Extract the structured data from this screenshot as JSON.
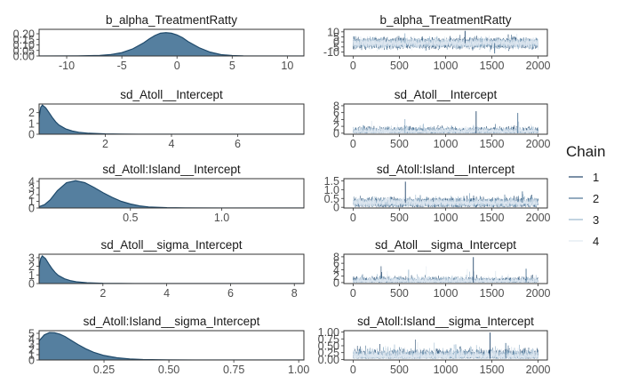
{
  "legend": {
    "title": "Chain",
    "placement": "right",
    "items": [
      {
        "label": "1",
        "color": "#23466b"
      },
      {
        "label": "2",
        "color": "#4c7394"
      },
      {
        "label": "3",
        "color": "#9ab7cd"
      },
      {
        "label": "4",
        "color": "#dfe8f0"
      }
    ]
  },
  "colors": {
    "density_fill": "#557f9f",
    "density_line": "#1f4a6b",
    "panel_border": "#333333",
    "tick_text": "#4d4d4d"
  },
  "chart_data": [
    {
      "type": "area",
      "kind": "density",
      "title": "b_alpha_TreatmentRatty",
      "xlim": [
        -12.5,
        11.5
      ],
      "ylim": [
        0,
        0.24
      ],
      "xticks": [
        -10,
        -5,
        0,
        5,
        10
      ],
      "xtick_labels": [
        "-10",
        "-5",
        "0",
        "5",
        "10"
      ],
      "yticks": [
        0,
        0.05,
        0.1,
        0.15,
        0.2
      ],
      "ytick_labels": [
        "0.00",
        "0.05",
        "0.10",
        "0.15",
        "0.20"
      ],
      "x": [
        -12.5,
        -9,
        -7,
        -6,
        -5,
        -4,
        -3,
        -2.5,
        -2,
        -1.5,
        -1,
        -0.5,
        0,
        0.5,
        1,
        2,
        3,
        4,
        5,
        6,
        7,
        9,
        11.5
      ],
      "y": [
        0,
        0.001,
        0.005,
        0.013,
        0.03,
        0.065,
        0.12,
        0.155,
        0.185,
        0.205,
        0.21,
        0.205,
        0.19,
        0.165,
        0.13,
        0.075,
        0.035,
        0.012,
        0.004,
        0.001,
        0.0004,
        0.0001,
        0
      ]
    },
    {
      "type": "line",
      "kind": "trace",
      "title": "b_alpha_TreatmentRatty",
      "xlim": [
        -100,
        2100
      ],
      "ylim": [
        -14,
        12.5
      ],
      "xticks": [
        0,
        500,
        1000,
        1500,
        2000
      ],
      "xtick_labels": [
        "0",
        "500",
        "1000",
        "1500",
        "2000"
      ],
      "yticks": [
        -10,
        -5,
        0,
        5,
        10
      ],
      "ytick_labels": [
        "-10",
        "-5",
        "0",
        "5",
        "10"
      ],
      "trace": {
        "model": "normal",
        "center": -1.2,
        "spread": 2.3,
        "min": -12,
        "max": 11,
        "spikes": [
          [
            1210,
            11
          ],
          [
            1530,
            -11.5
          ],
          [
            560,
            8.5
          ],
          [
            1770,
            8
          ]
        ]
      }
    },
    {
      "type": "area",
      "kind": "density",
      "title": "sd_Atoll__Intercept",
      "xlim": [
        0,
        8
      ],
      "ylim": [
        0,
        2.8
      ],
      "xticks": [
        2,
        4,
        6
      ],
      "xtick_labels": [
        "2",
        "4",
        "6"
      ],
      "yticks": [
        0,
        1,
        2
      ],
      "ytick_labels": [
        "0",
        "1",
        "2"
      ],
      "x": [
        0,
        0.05,
        0.1,
        0.2,
        0.3,
        0.4,
        0.5,
        0.6,
        0.8,
        1.0,
        1.2,
        1.5,
        2.0,
        2.5,
        3,
        4,
        8
      ],
      "y": [
        1.5,
        2.5,
        2.7,
        2.45,
        2.0,
        1.55,
        1.15,
        0.85,
        0.5,
        0.3,
        0.18,
        0.09,
        0.03,
        0.012,
        0.005,
        0.001,
        0
      ]
    },
    {
      "type": "line",
      "kind": "trace",
      "title": "sd_Atoll__Intercept",
      "xlim": [
        -100,
        2100
      ],
      "ylim": [
        -0.3,
        8.5
      ],
      "xticks": [
        0,
        500,
        1000,
        1500,
        2000
      ],
      "xtick_labels": [
        "0",
        "500",
        "1000",
        "1500",
        "2000"
      ],
      "yticks": [
        0,
        2,
        4,
        6,
        8
      ],
      "ytick_labels": [
        "0",
        "2",
        "4",
        "6",
        "8"
      ],
      "trace": {
        "model": "halfnormal",
        "center": 0,
        "spread": 0.7,
        "min": 0,
        "max": 8,
        "spikes": [
          [
            1330,
            6.4
          ],
          [
            1780,
            5.9
          ],
          [
            560,
            4.1
          ],
          [
            200,
            3.6
          ]
        ]
      }
    },
    {
      "type": "area",
      "kind": "density",
      "title": "sd_Atoll:Island__Intercept",
      "xlim": [
        0,
        1.45
      ],
      "ylim": [
        0,
        4.4
      ],
      "xticks": [
        0.5,
        1.0
      ],
      "xtick_labels": [
        "0.5",
        "1.0"
      ],
      "yticks": [
        0,
        1,
        2,
        3,
        4
      ],
      "ytick_labels": [
        "0",
        "1",
        "2",
        "3",
        "4"
      ],
      "x": [
        0,
        0.03,
        0.06,
        0.1,
        0.15,
        0.2,
        0.25,
        0.3,
        0.35,
        0.4,
        0.45,
        0.5,
        0.55,
        0.6,
        0.7,
        0.8,
        1.0,
        1.45
      ],
      "y": [
        0.2,
        0.5,
        1.2,
        2.6,
        3.8,
        4.1,
        3.8,
        3.1,
        2.3,
        1.6,
        1.0,
        0.6,
        0.32,
        0.16,
        0.05,
        0.015,
        0.002,
        0
      ]
    },
    {
      "type": "line",
      "kind": "trace",
      "title": "sd_Atoll:Island__Intercept",
      "xlim": [
        -100,
        2100
      ],
      "ylim": [
        -0.04,
        1.62
      ],
      "xticks": [
        0,
        500,
        1000,
        1500,
        2000
      ],
      "xtick_labels": [
        "0",
        "500",
        "1000",
        "1500",
        "2000"
      ],
      "yticks": [
        0,
        0.5,
        1,
        1.5
      ],
      "ytick_labels": [
        "0",
        "0.5",
        "1.0",
        "1.5"
      ],
      "trace": {
        "model": "normal",
        "center": 0.26,
        "spread": 0.12,
        "min": 0.005,
        "max": 1.5,
        "spikes": [
          [
            565,
            1.45
          ],
          [
            1830,
            0.9
          ],
          [
            1260,
            0.8
          ]
        ]
      }
    },
    {
      "type": "area",
      "kind": "density",
      "title": "sd_Atoll__sigma_Intercept",
      "xlim": [
        0,
        8.3
      ],
      "ylim": [
        0,
        3.4
      ],
      "xticks": [
        2,
        4,
        6,
        8
      ],
      "xtick_labels": [
        "2",
        "4",
        "6",
        "8"
      ],
      "yticks": [
        0,
        1,
        2,
        3
      ],
      "ytick_labels": [
        "0",
        "1",
        "2",
        "3"
      ],
      "x": [
        0,
        0.05,
        0.1,
        0.2,
        0.3,
        0.4,
        0.5,
        0.6,
        0.8,
        1.0,
        1.2,
        1.5,
        2.0,
        2.5,
        3,
        4,
        8.3
      ],
      "y": [
        1.8,
        2.9,
        3.2,
        2.9,
        2.3,
        1.75,
        1.3,
        0.95,
        0.55,
        0.32,
        0.19,
        0.09,
        0.03,
        0.012,
        0.005,
        0.001,
        0
      ]
    },
    {
      "type": "line",
      "kind": "trace",
      "title": "sd_Atoll__sigma_Intercept",
      "xlim": [
        -100,
        2100
      ],
      "ylim": [
        -0.3,
        8.8
      ],
      "xticks": [
        0,
        500,
        1000,
        1500,
        2000
      ],
      "xtick_labels": [
        "0",
        "500",
        "1000",
        "1500",
        "2000"
      ],
      "yticks": [
        0,
        2,
        4,
        6,
        8
      ],
      "ytick_labels": [
        "0",
        "2",
        "4",
        "6",
        "8"
      ],
      "trace": {
        "model": "halfnormal",
        "center": 0,
        "spread": 0.65,
        "min": 0,
        "max": 8.3,
        "spikes": [
          [
            1300,
            7.9
          ],
          [
            1870,
            4.3
          ],
          [
            600,
            4.0
          ],
          [
            1540,
            3.6
          ]
        ]
      }
    },
    {
      "type": "area",
      "kind": "density",
      "title": "sd_Atoll:Island__sigma_Intercept",
      "xlim": [
        0,
        1.02
      ],
      "ylim": [
        0,
        5.5
      ],
      "xticks": [
        0.25,
        0.5,
        0.75,
        1.0
      ],
      "xtick_labels": [
        "0.25",
        "0.50",
        "0.75",
        "1.00"
      ],
      "yticks": [
        0,
        1,
        2,
        3,
        4,
        5
      ],
      "ytick_labels": [
        "0",
        "1",
        "2",
        "3",
        "4",
        "5"
      ],
      "x": [
        0,
        0.02,
        0.04,
        0.06,
        0.08,
        0.1,
        0.12,
        0.15,
        0.18,
        0.21,
        0.25,
        0.3,
        0.35,
        0.4,
        0.5,
        0.6,
        0.8,
        1.02
      ],
      "y": [
        3.6,
        4.7,
        5.15,
        5.1,
        4.85,
        4.4,
        3.8,
        2.9,
        2.1,
        1.45,
        0.85,
        0.42,
        0.2,
        0.09,
        0.02,
        0.005,
        0.001,
        0
      ]
    },
    {
      "type": "line",
      "kind": "trace",
      "title": "sd_Atoll:Island__sigma_Intercept",
      "xlim": [
        -100,
        2100
      ],
      "ylim": [
        -0.02,
        1.05
      ],
      "xticks": [
        0,
        500,
        1000,
        1500,
        2000
      ],
      "xtick_labels": [
        "0",
        "500",
        "1000",
        "1500",
        "2000"
      ],
      "yticks": [
        0,
        0.25,
        0.5,
        0.75,
        1
      ],
      "ytick_labels": [
        "0.00",
        "0.25",
        "0.50",
        "0.75",
        "1.00"
      ],
      "trace": {
        "model": "halfnormal",
        "center": 0.03,
        "spread": 0.13,
        "min": 0.001,
        "max": 1.0,
        "spikes": [
          [
            1480,
            0.98
          ],
          [
            1650,
            0.6
          ],
          [
            1110,
            0.55
          ],
          [
            350,
            0.5
          ]
        ]
      }
    }
  ]
}
